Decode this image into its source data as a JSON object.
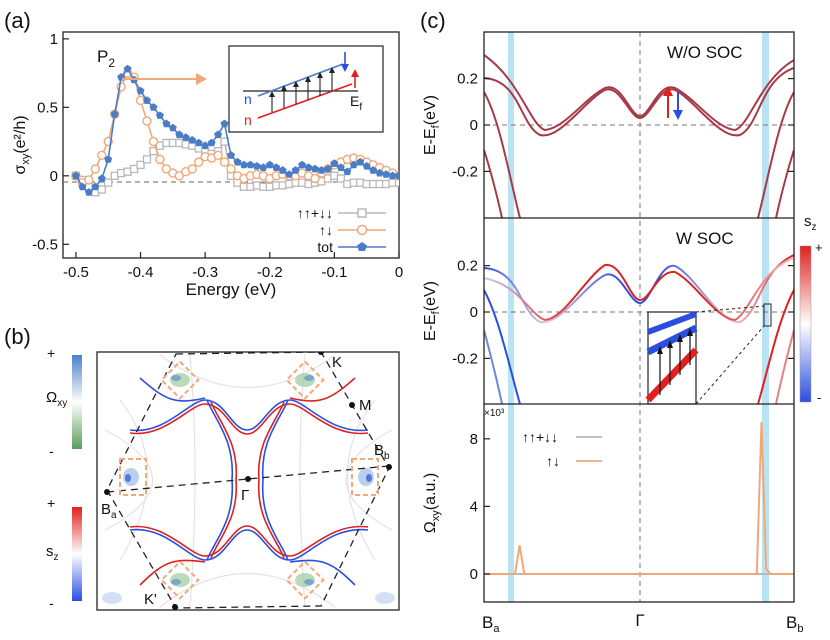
{
  "colors": {
    "total": "#4a7cc7",
    "anti": "#f0a878",
    "same": "#b8b8b8",
    "band": "#a83a48",
    "spin_up": "#e02020",
    "spin_down": "#2a4ee0",
    "highlight": "#a8dcef",
    "berry_pos": "#6a98d0",
    "berry_neg": "#7cb87c",
    "box": "#f0a878"
  },
  "panel_a": {
    "label": "(a)",
    "peak_label": "P",
    "peak_sub": "2",
    "ylabel_main": "σ",
    "ylabel_sub": "xy",
    "ylabel_unit": "(e²/h)",
    "xlabel": "Energy (eV)",
    "xticks": [
      "-0.5",
      "-0.4",
      "-0.3",
      "-0.2",
      "-0.1",
      "0"
    ],
    "yticks": [
      "-0.5",
      "0",
      "0.5",
      "1"
    ],
    "legend": [
      "↑↑+↓↓",
      "↑↓",
      "tot"
    ],
    "inset": {
      "n_top": "n",
      "n_bottom": "n",
      "ef": "E",
      "ef_sub": "f"
    }
  },
  "panel_b": {
    "label": "(b)",
    "cb1_top": "+",
    "cb1_bottom": "-",
    "cb1_label": "Ω",
    "cb1_sub": "xy",
    "cb2_top": "+",
    "cb2_bottom": "-",
    "cb2_label": "s",
    "cb2_sub": "z",
    "points": {
      "K": "K",
      "M": "M",
      "Bb": "B",
      "Bb_sub": "b",
      "Ba": "B",
      "Ba_sub": "a",
      "G": "Γ",
      "Kp": "K'"
    }
  },
  "panel_c": {
    "label": "(c)",
    "top_title": "W/O SOC",
    "mid_title": "W SOC",
    "ylabel_main": "E-E",
    "ylabel_sub": "f",
    "ylabel_unit": "(eV)",
    "yticks_band": [
      "0.2",
      "0",
      "-0.2"
    ],
    "bottom_ylabel_main": "Ω",
    "bottom_ylabel_sub": "xy",
    "bottom_ylabel_unit": "(a.u.)",
    "bottom_yticks": [
      "0",
      "4",
      "8"
    ],
    "bottom_scale": "×10³",
    "bottom_legend": [
      "↑↑+↓↓",
      "↑↓"
    ],
    "xticks": {
      "Ba": "B",
      "Ba_sub": "a",
      "G": "Γ",
      "Bb": "B",
      "Bb_sub": "b"
    },
    "cb_label": "s",
    "cb_sub": "z",
    "cb_top": "+",
    "cb_bottom": "-"
  },
  "chart_data": [
    {
      "type": "line",
      "panel": "a",
      "xlabel": "Energy (eV)",
      "ylabel": "σxy(e²/h)",
      "xlim": [
        -0.52,
        0
      ],
      "ylim": [
        -0.6,
        1.05
      ],
      "series": [
        {
          "name": "tot",
          "x": [
            -0.5,
            -0.49,
            -0.48,
            -0.47,
            -0.46,
            -0.45,
            -0.44,
            -0.43,
            -0.42,
            -0.41,
            -0.4,
            -0.39,
            -0.38,
            -0.37,
            -0.36,
            -0.35,
            -0.34,
            -0.33,
            -0.32,
            -0.31,
            -0.3,
            -0.29,
            -0.28,
            -0.27,
            -0.26,
            -0.25,
            -0.24,
            -0.23,
            -0.22,
            -0.21,
            -0.2,
            -0.19,
            -0.18,
            -0.17,
            -0.16,
            -0.15,
            -0.14,
            -0.13,
            -0.12,
            -0.11,
            -0.1,
            -0.09,
            -0.08,
            -0.07,
            -0.06,
            -0.05,
            -0.04,
            -0.03,
            -0.02,
            -0.01,
            0
          ],
          "y": [
            0,
            -0.08,
            -0.12,
            -0.08,
            -0.02,
            0.12,
            0.45,
            0.72,
            0.78,
            0.7,
            0.62,
            0.55,
            0.5,
            0.44,
            0.38,
            0.35,
            0.3,
            0.28,
            0.26,
            0.24,
            0.22,
            0.24,
            0.3,
            0.38,
            0.15,
            0.1,
            0.08,
            0.08,
            0.07,
            0.06,
            0.08,
            0.06,
            0.04,
            0.01,
            0.04,
            0.08,
            0.06,
            0.05,
            0.04,
            0.05,
            0.09,
            0.06,
            0.03,
            0.08,
            0.1,
            0.07,
            0.04,
            0.02,
            0.01,
            0.0,
            0.0
          ]
        },
        {
          "name": "↑↓",
          "x": [
            -0.5,
            -0.49,
            -0.48,
            -0.47,
            -0.46,
            -0.45,
            -0.44,
            -0.43,
            -0.42,
            -0.41,
            -0.4,
            -0.39,
            -0.38,
            -0.37,
            -0.36,
            -0.35,
            -0.34,
            -0.33,
            -0.32,
            -0.31,
            -0.3,
            -0.29,
            -0.28,
            -0.27,
            -0.26,
            -0.25,
            -0.24,
            -0.23,
            -0.22,
            -0.21,
            -0.2,
            -0.19,
            -0.18,
            -0.17,
            -0.16,
            -0.15,
            -0.14,
            -0.13,
            -0.12,
            -0.11,
            -0.1,
            -0.09,
            -0.08,
            -0.07,
            -0.06,
            -0.05,
            -0.04,
            -0.03,
            -0.02,
            -0.01,
            0
          ],
          "y": [
            0,
            -0.05,
            -0.03,
            0.05,
            0.15,
            0.25,
            0.45,
            0.65,
            0.75,
            0.72,
            0.55,
            0.4,
            0.25,
            0.12,
            0.05,
            0.02,
            0.0,
            0.03,
            0.05,
            0.1,
            0.14,
            0.13,
            0.15,
            0.1,
            0.05,
            0.0,
            -0.02,
            0.0,
            0.01,
            0.0,
            -0.02,
            0.0,
            0.01,
            0.0,
            0.0,
            0.02,
            0.0,
            -0.02,
            0.02,
            0.05,
            0.08,
            0.1,
            0.12,
            0.13,
            0.12,
            0.1,
            0.08,
            0.06,
            0.04,
            0.02,
            0.0
          ]
        },
        {
          "name": "↑↑+↓↓",
          "x": [
            -0.5,
            -0.49,
            -0.48,
            -0.47,
            -0.46,
            -0.45,
            -0.44,
            -0.43,
            -0.42,
            -0.41,
            -0.4,
            -0.39,
            -0.38,
            -0.37,
            -0.36,
            -0.35,
            -0.34,
            -0.33,
            -0.32,
            -0.31,
            -0.3,
            -0.29,
            -0.28,
            -0.27,
            -0.26,
            -0.25,
            -0.24,
            -0.23,
            -0.22,
            -0.21,
            -0.2,
            -0.19,
            -0.18,
            -0.17,
            -0.16,
            -0.15,
            -0.14,
            -0.13,
            -0.12,
            -0.11,
            -0.1,
            -0.09,
            -0.08,
            -0.07,
            -0.06,
            -0.05,
            -0.04,
            -0.03,
            -0.02,
            -0.01,
            0
          ],
          "y": [
            0,
            -0.03,
            -0.08,
            -0.12,
            -0.1,
            -0.05,
            0.0,
            0.02,
            0.03,
            0.05,
            0.08,
            0.12,
            0.18,
            0.22,
            0.24,
            0.24,
            0.24,
            0.23,
            0.22,
            0.2,
            0.18,
            0.16,
            0.18,
            0.25,
            0.0,
            -0.05,
            -0.08,
            -0.08,
            -0.07,
            -0.08,
            -0.08,
            -0.07,
            -0.07,
            -0.06,
            -0.05,
            -0.05,
            -0.06,
            -0.05,
            -0.04,
            -0.02,
            0.0,
            -0.02,
            -0.06,
            -0.05,
            -0.05,
            -0.06,
            -0.06,
            -0.06,
            -0.06,
            -0.05,
            -0.05
          ]
        }
      ]
    },
    {
      "type": "line",
      "panel": "c-bottom",
      "ylabel": "Ωxy(a.u.)",
      "ylim": [
        -0.8,
        9.5
      ],
      "scale": "×10³",
      "categories_k": [
        "Ba",
        "Γ",
        "Bb"
      ],
      "series": [
        {
          "name": "↑↑+↓↓",
          "x": [
            0,
            1
          ],
          "y": [
            0,
            0
          ]
        },
        {
          "name": "↑↓",
          "x": [
            0,
            0.1,
            0.115,
            0.13,
            0.5,
            0.88,
            0.895,
            0.91,
            0.925,
            1
          ],
          "y": [
            0,
            0,
            1.7,
            0,
            0,
            0,
            9.0,
            0.3,
            0,
            0
          ]
        }
      ]
    }
  ]
}
